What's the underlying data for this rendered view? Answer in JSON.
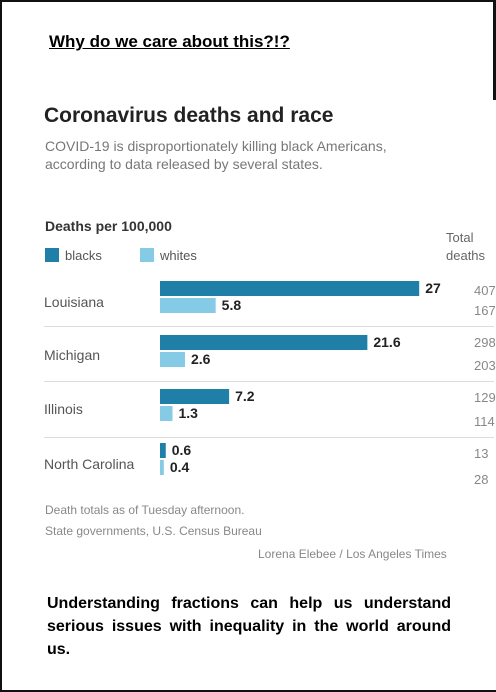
{
  "heading": "Why do we care about this?!?",
  "caption": "Understanding fractions can help us understand serious issues with inequality in the world around us.",
  "colors": {
    "blacks": "#1f7fa6",
    "whites": "#85cbe6"
  },
  "chart_data": {
    "type": "bar",
    "title": "Coronavirus deaths and race",
    "subtitle": "COVID-19 is disproportionately killing black Americans, according to data released by several states.",
    "unit_label": "Deaths per 100,000",
    "total_deaths_label": "Total deaths",
    "categories": [
      "Louisiana",
      "Michigan",
      "Illinois",
      "North Carolina"
    ],
    "series": [
      {
        "name": "blacks",
        "values": [
          27,
          21.6,
          7.2,
          0.6
        ],
        "total_deaths": [
          "407",
          "298",
          "129",
          "13"
        ]
      },
      {
        "name": "whites",
        "values": [
          5.8,
          2.6,
          1.3,
          0.4
        ],
        "total_deaths": [
          "167",
          "203",
          "114",
          "28"
        ]
      }
    ],
    "notes": [
      "Death totals as of Tuesday afternoon.",
      "State governments, U.S. Census Bureau"
    ],
    "credit": "Lorena Elebee / Los Angeles Times"
  }
}
